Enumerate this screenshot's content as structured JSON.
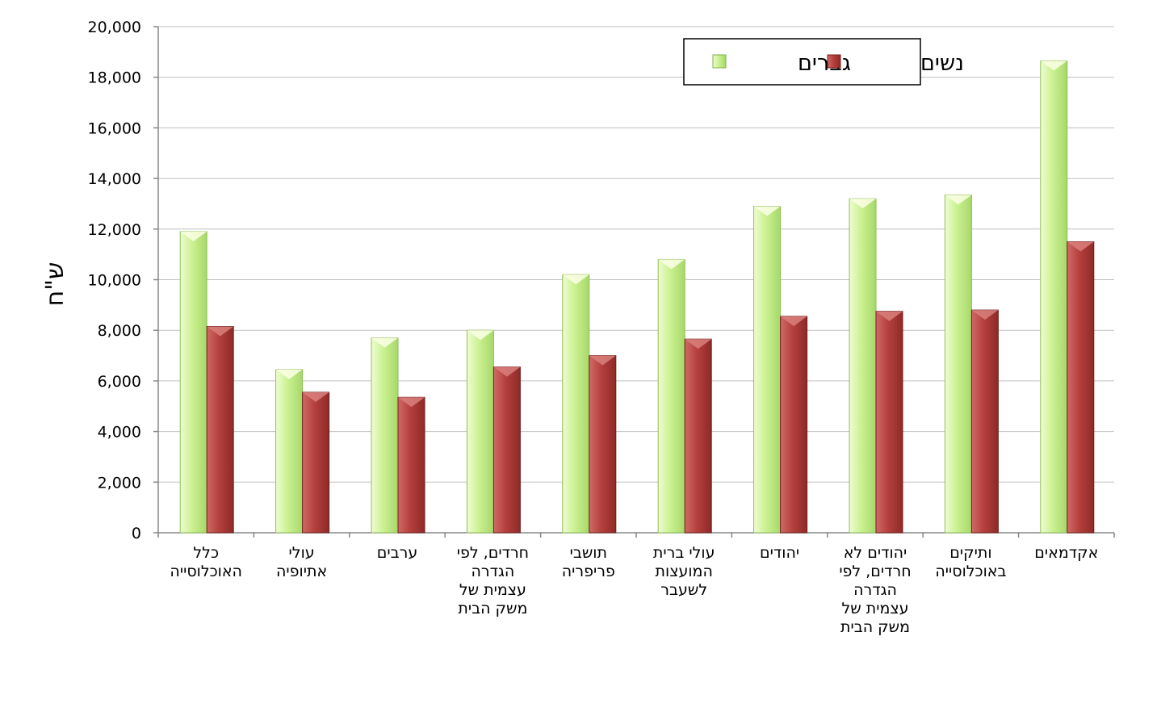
{
  "chart_data": {
    "type": "bar",
    "title": "",
    "xlabel": "",
    "ylabel": "ש\"ח",
    "ylim": [
      0,
      20000
    ],
    "yticks": [
      "0",
      "2,000",
      "4,000",
      "6,000",
      "8,000",
      "10,000",
      "12,000",
      "14,000",
      "16,000",
      "18,000",
      "20,000"
    ],
    "ytick_values": [
      0,
      2000,
      4000,
      6000,
      8000,
      10000,
      12000,
      14000,
      16000,
      18000,
      20000
    ],
    "grid": true,
    "legend_position": "top-right",
    "categories": [
      [
        "כלל",
        "האוכלוסייה"
      ],
      [
        "עולי",
        "אתיופיה"
      ],
      [
        "ערבים"
      ],
      [
        "חרדים, לפי",
        "הגדרה",
        "עצמית של",
        "משק הבית"
      ],
      [
        "תושבי",
        "פריפריה"
      ],
      [
        "עולי ברית",
        "המועצות",
        "לשעבר"
      ],
      [
        "יהודים"
      ],
      [
        "יהודים לא",
        "חרדים, לפי",
        "הגדרה",
        "עצמית של",
        "משק הבית"
      ],
      [
        "ותיקים",
        "באוכלוסייה"
      ],
      [
        "אקדמאים"
      ]
    ],
    "series": [
      {
        "name": "גברים",
        "color": "#c6ef8c",
        "values": [
          11900,
          6450,
          7700,
          8000,
          10200,
          10800,
          12900,
          13200,
          13350,
          18650
        ]
      },
      {
        "name": "נשים",
        "color": "#b84340",
        "values": [
          8150,
          5550,
          5350,
          6550,
          7000,
          7650,
          8550,
          8750,
          8800,
          11500
        ]
      }
    ]
  }
}
